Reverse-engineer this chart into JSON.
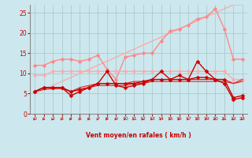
{
  "xlabel": "Vent moyen/en rafales ( km/h )",
  "background_color": "#cce8ee",
  "grid_color": "#aacccc",
  "xlim": [
    -0.5,
    23.5
  ],
  "ylim": [
    0,
    27
  ],
  "x": [
    0,
    1,
    2,
    3,
    4,
    5,
    6,
    7,
    8,
    9,
    10,
    11,
    12,
    13,
    14,
    15,
    16,
    17,
    18,
    19,
    20,
    21,
    22,
    23
  ],
  "lines": [
    {
      "y": [
        5.2,
        6.0,
        7.0,
        8.0,
        9.0,
        10.0,
        11.0,
        12.0,
        13.0,
        14.0,
        15.0,
        16.0,
        17.0,
        18.0,
        19.0,
        20.0,
        21.0,
        22.0,
        23.0,
        24.0,
        25.0,
        26.0,
        27.0,
        27.0
      ],
      "color": "#ffaaaa",
      "lw": 1.0,
      "marker": null,
      "ms": 0,
      "zorder": 1
    },
    {
      "y": [
        12.0,
        12.0,
        13.0,
        13.5,
        13.5,
        13.0,
        13.5,
        14.5,
        11.0,
        8.5,
        14.0,
        14.5,
        15.0,
        15.0,
        18.0,
        20.5,
        21.0,
        22.0,
        23.5,
        24.0,
        26.0,
        21.0,
        13.5,
        13.5
      ],
      "color": "#ff8888",
      "lw": 1.0,
      "marker": "D",
      "ms": 2.5,
      "zorder": 2
    },
    {
      "y": [
        9.5,
        9.5,
        10.5,
        10.5,
        10.5,
        10.5,
        10.5,
        10.5,
        10.5,
        10.5,
        10.5,
        10.5,
        10.5,
        10.5,
        10.5,
        10.5,
        10.5,
        10.5,
        10.5,
        10.5,
        10.5,
        10.5,
        8.5,
        8.5
      ],
      "color": "#ffaaaa",
      "lw": 1.0,
      "marker": "D",
      "ms": 2.5,
      "zorder": 2
    },
    {
      "y": [
        5.5,
        6.5,
        6.5,
        6.5,
        4.5,
        5.5,
        6.5,
        7.5,
        10.5,
        7.0,
        6.5,
        7.0,
        7.5,
        8.5,
        10.5,
        8.5,
        9.5,
        8.5,
        13.0,
        10.5,
        8.5,
        7.5,
        3.5,
        4.0
      ],
      "color": "#cc0000",
      "lw": 1.0,
      "marker": "D",
      "ms": 2.5,
      "zorder": 5
    },
    {
      "y": [
        5.5,
        6.5,
        6.5,
        6.5,
        5.5,
        6.0,
        6.5,
        7.5,
        7.5,
        7.5,
        7.5,
        7.5,
        8.0,
        8.5,
        8.5,
        8.5,
        8.5,
        8.5,
        9.0,
        9.0,
        8.5,
        8.5,
        4.0,
        4.5
      ],
      "color": "#cc0000",
      "lw": 1.0,
      "marker": "D",
      "ms": 2.5,
      "zorder": 4
    },
    {
      "y": [
        5.5,
        6.5,
        6.5,
        6.5,
        5.5,
        6.5,
        7.0,
        7.5,
        7.5,
        7.5,
        7.5,
        8.0,
        8.0,
        8.5,
        8.5,
        8.5,
        8.5,
        8.5,
        8.5,
        8.5,
        8.5,
        8.5,
        7.5,
        8.5
      ],
      "color": "#dd2222",
      "lw": 0.8,
      "marker": null,
      "ms": 0,
      "zorder": 3
    },
    {
      "y": [
        5.5,
        6.0,
        6.2,
        6.2,
        5.5,
        6.0,
        6.5,
        7.0,
        7.0,
        7.0,
        7.0,
        7.5,
        7.5,
        8.0,
        8.0,
        8.0,
        8.0,
        8.0,
        8.0,
        8.0,
        8.0,
        8.0,
        7.5,
        8.0
      ],
      "color": "#dd2222",
      "lw": 0.8,
      "marker": null,
      "ms": 0,
      "zorder": 3
    }
  ],
  "arrow_color": "#cc2222",
  "xlabel_color": "#cc0000",
  "tick_color": "#cc0000",
  "spine_color": "#888888"
}
